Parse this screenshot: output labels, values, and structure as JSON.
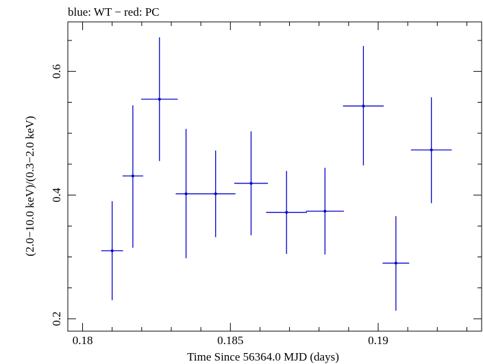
{
  "chart_data": {
    "type": "scatter",
    "title": "blue: WT − red: PC",
    "xlabel": "Time Since 56364.0 MJD (days)",
    "ylabel": "(2.0−10.0 keV)/(0.3−2.0 keV)",
    "xlim": [
      0.1795,
      0.1935
    ],
    "ylim": [
      0.18,
      0.68
    ],
    "x_ticks": [
      0.18,
      0.185,
      0.19
    ],
    "x_tick_labels": [
      "0.18",
      "0.185",
      "0.19"
    ],
    "y_ticks": [
      0.2,
      0.4,
      0.6
    ],
    "y_tick_labels": [
      "0.2",
      "0.4",
      "0.6"
    ],
    "grid": false,
    "series": [
      {
        "name": "WT",
        "color": "#0000cc",
        "points": [
          {
            "x": 0.181,
            "xerr": 0.00037,
            "y": 0.31,
            "yerr_low": 0.08,
            "yerr_high": 0.08
          },
          {
            "x": 0.1817,
            "xerr": 0.00035,
            "y": 0.431,
            "yerr_low": 0.116,
            "yerr_high": 0.114
          },
          {
            "x": 0.1826,
            "xerr": 0.00062,
            "y": 0.555,
            "yerr_low": 0.1,
            "yerr_high": 0.1
          },
          {
            "x": 0.1835,
            "xerr": 0.00035,
            "y": 0.402,
            "yerr_low": 0.104,
            "yerr_high": 0.105
          },
          {
            "x": 0.1845,
            "xerr": 0.00067,
            "y": 0.402,
            "yerr_low": 0.07,
            "yerr_high": 0.07
          },
          {
            "x": 0.1857,
            "xerr": 0.00057,
            "y": 0.419,
            "yerr_low": 0.084,
            "yerr_high": 0.084
          },
          {
            "x": 0.1869,
            "xerr": 0.00069,
            "y": 0.372,
            "yerr_low": 0.067,
            "yerr_high": 0.067
          },
          {
            "x": 0.1882,
            "xerr": 0.00064,
            "y": 0.374,
            "yerr_low": 0.07,
            "yerr_high": 0.07
          },
          {
            "x": 0.1895,
            "xerr": 0.00069,
            "y": 0.544,
            "yerr_low": 0.096,
            "yerr_high": 0.097
          },
          {
            "x": 0.1906,
            "xerr": 0.00045,
            "y": 0.29,
            "yerr_low": 0.077,
            "yerr_high": 0.076
          },
          {
            "x": 0.1918,
            "xerr": 0.00069,
            "y": 0.473,
            "yerr_low": 0.086,
            "yerr_high": 0.085
          }
        ]
      }
    ]
  }
}
